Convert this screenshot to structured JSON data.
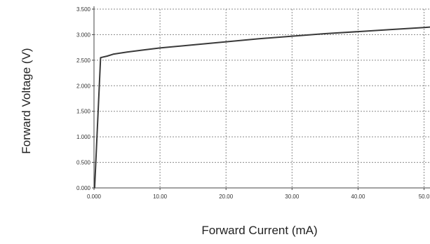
{
  "chart_data": {
    "type": "line",
    "title": "",
    "xlabel": "Forward Current (mA)",
    "ylabel": "Forward Voltage (V)",
    "xlim": [
      0,
      50.9
    ],
    "ylim": [
      0,
      3.5
    ],
    "xticks": [
      0,
      10,
      20,
      30,
      40,
      50
    ],
    "xtick_labels": [
      "0.000",
      "10.00",
      "20.00",
      "30.00",
      "40.00",
      "50.0"
    ],
    "yticks": [
      0,
      0.5,
      1.0,
      1.5,
      2.0,
      2.5,
      3.0,
      3.5
    ],
    "ytick_labels": [
      "0.000",
      "0.500",
      "1.000",
      "1.500",
      "2.000",
      "2.500",
      "3.000",
      "3.500"
    ],
    "grid": true,
    "line_color": "#3a3a3a",
    "grid_color": "#8a8a8a",
    "series": [
      {
        "x": [
          0.1,
          1.0,
          2.0,
          3.0,
          5.0,
          7.5,
          10.0,
          15.0,
          20.0,
          25.0,
          30.0,
          35.0,
          40.0,
          45.0,
          50.0,
          51.0
        ],
        "y": [
          0.0,
          2.55,
          2.58,
          2.62,
          2.66,
          2.7,
          2.74,
          2.8,
          2.86,
          2.92,
          2.97,
          3.02,
          3.06,
          3.1,
          3.14,
          3.15
        ]
      }
    ]
  }
}
